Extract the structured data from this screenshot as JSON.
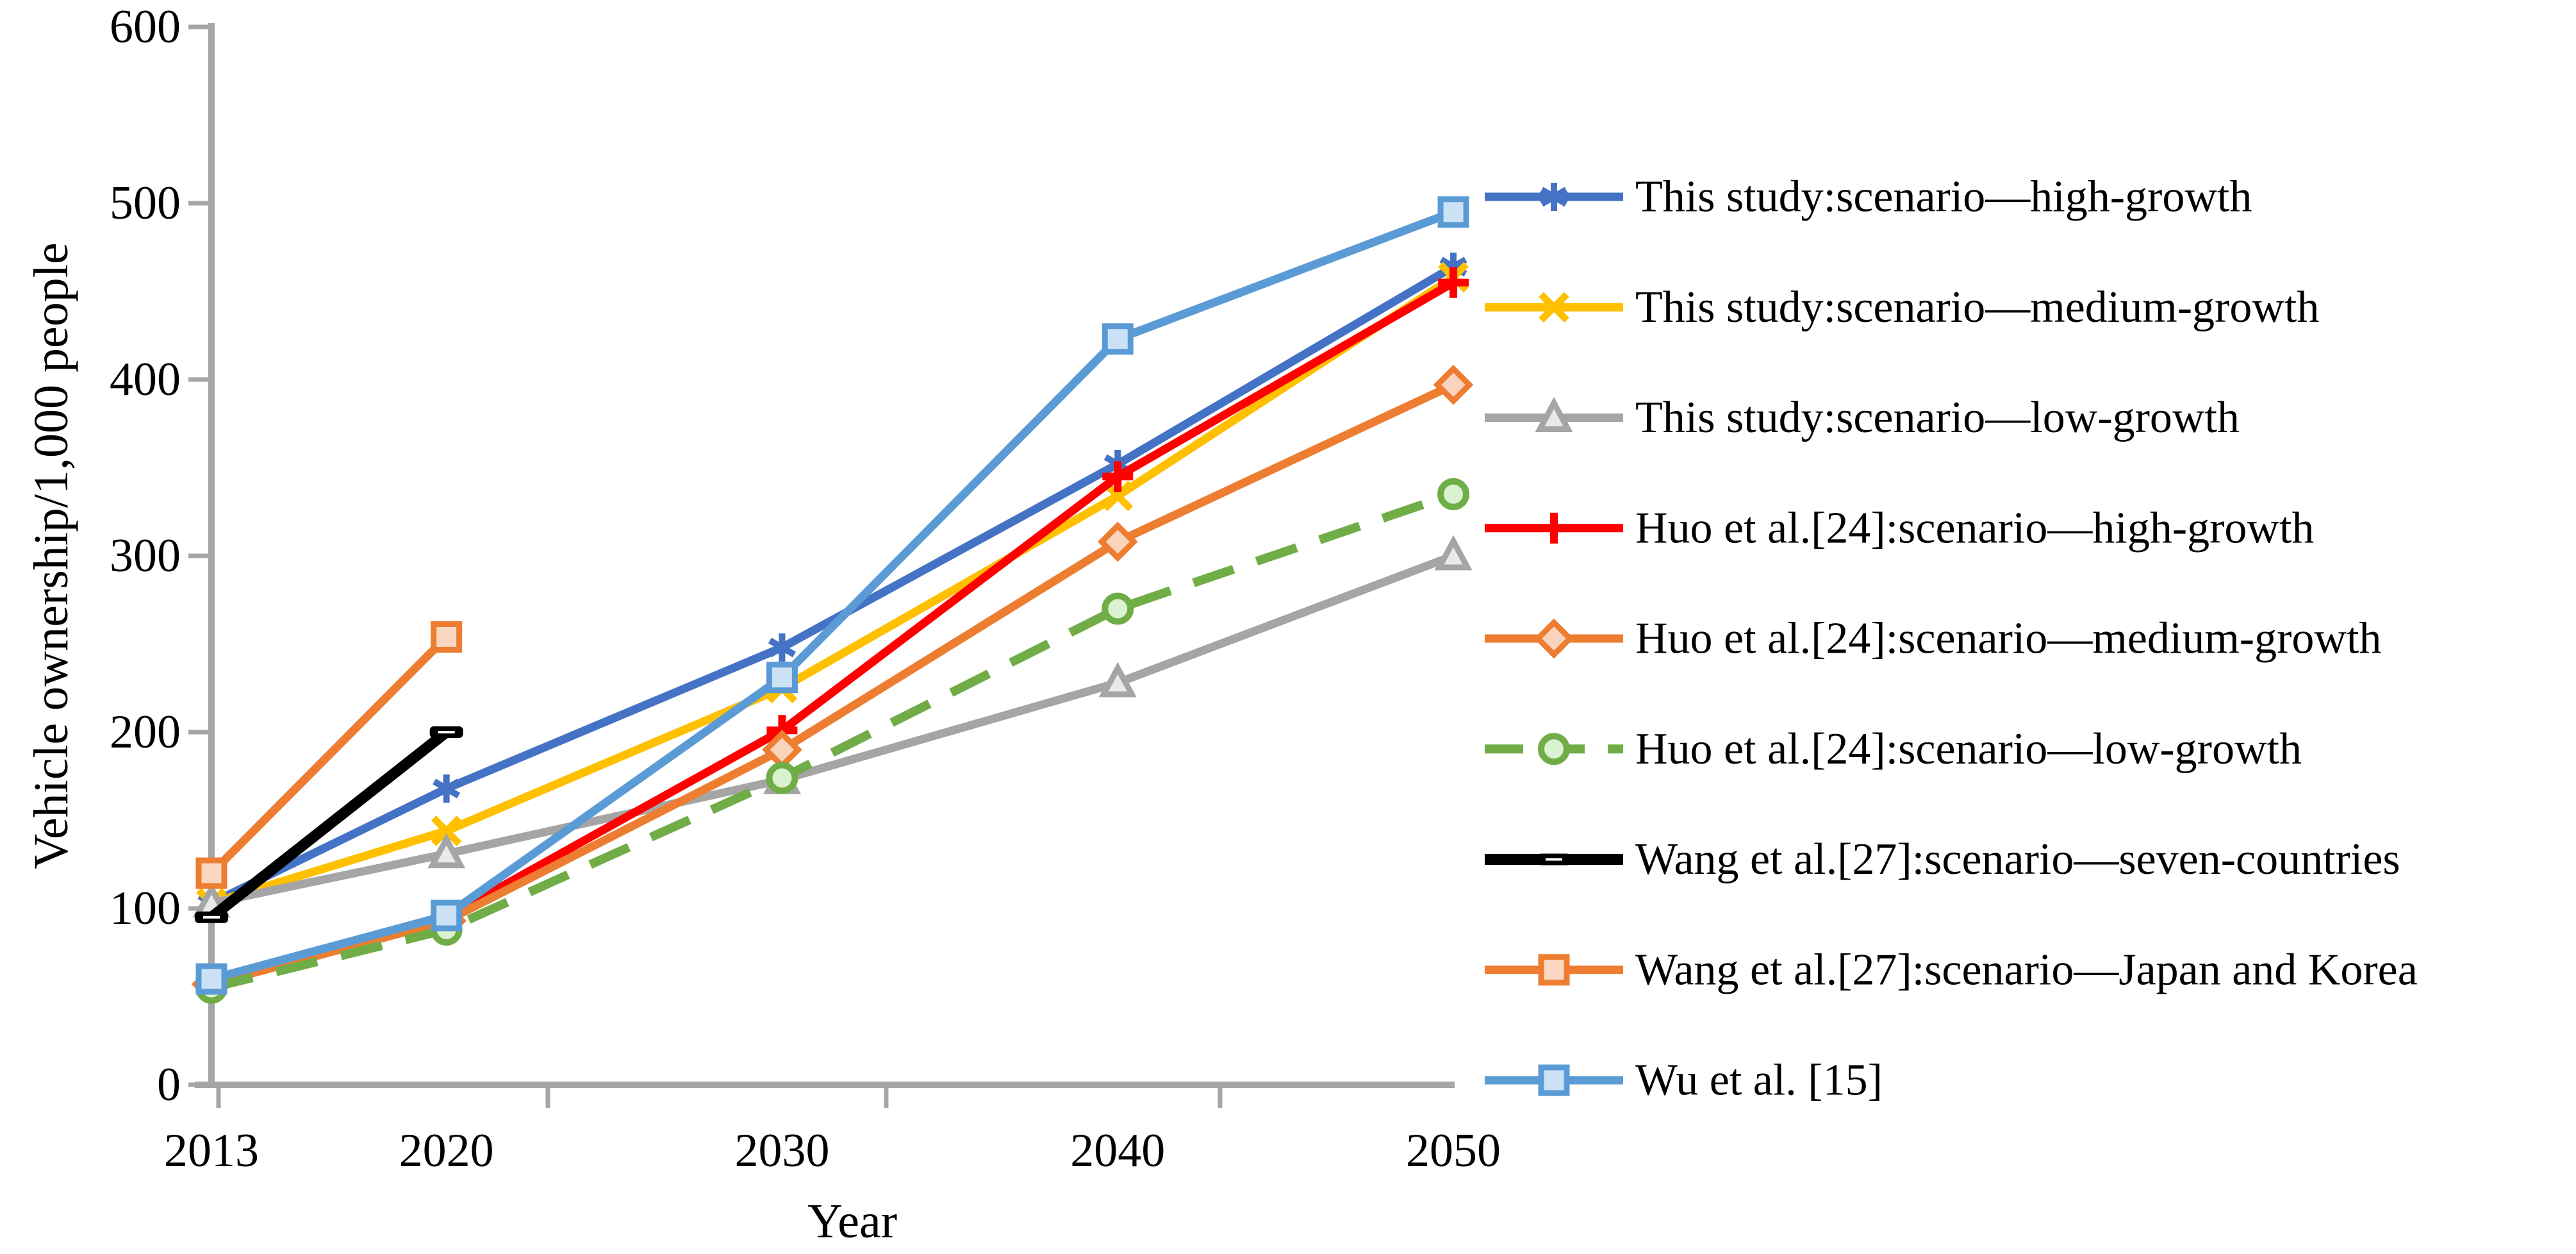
{
  "figure": {
    "background": "#FFFFFF",
    "axis_color": "#A6A6A6",
    "text_color": "#000000"
  },
  "chart_data": {
    "type": "line",
    "title": "",
    "xlabel": "Year",
    "ylabel": "Vehicle ownership/1,000 people",
    "x": [
      2013,
      2020,
      2030,
      2040,
      2050
    ],
    "xtick_labels": [
      "2013",
      "2020",
      "2030",
      "2040",
      "2050"
    ],
    "ylim": [
      0,
      600
    ],
    "ytick_step": 100,
    "ytick_labels": [
      "0",
      "100",
      "200",
      "300",
      "400",
      "500",
      "600"
    ],
    "grid": false,
    "legend_position": "right-outside",
    "series": [
      {
        "name": "This study:scenario—high-growth",
        "color": "#4472C4",
        "marker": "asterisk",
        "line_style": "solid",
        "values": [
          103,
          168,
          248,
          352,
          464
        ]
      },
      {
        "name": "This study:scenario—medium-growth",
        "color": "#FFC000",
        "marker": "x",
        "line_style": "solid",
        "values": [
          103,
          144,
          225,
          334,
          458
        ]
      },
      {
        "name": "This study:scenario—low-growth",
        "color": "#A5A5A5",
        "marker": "triangle",
        "marker_fill": "#E9E9E9",
        "line_style": "solid",
        "values": [
          103,
          131,
          173,
          228,
          300
        ]
      },
      {
        "name": "Huo et al.[24]:scenario—high-growth",
        "color": "#FF0000",
        "marker": "plus",
        "line_style": "solid",
        "values": [
          58,
          95,
          201,
          345,
          455
        ]
      },
      {
        "name": "Huo et al.[24]:scenario—medium-growth",
        "color": "#ED7D31",
        "marker": "diamond",
        "marker_fill": "#F9D3BB",
        "line_style": "solid",
        "values": [
          57,
          93,
          190,
          308,
          397
        ]
      },
      {
        "name": "Huo et al.[24]:scenario—low-growth",
        "color": "#70AD47",
        "marker": "circle",
        "marker_fill": "#D9F2CF",
        "line_style": "dashed",
        "values": [
          55,
          88,
          174,
          270,
          335
        ]
      },
      {
        "name": "Wang et al.[27]:scenario—seven-countries",
        "color": "#000000",
        "marker": "dash",
        "line_style": "solid",
        "values": [
          95,
          200,
          null,
          null,
          null
        ]
      },
      {
        "name": "Wang et al.[27]:scenario—Japan and Korea",
        "color": "#ED7D31",
        "marker": "square",
        "marker_fill": "#FAD7C1",
        "line_style": "solid",
        "values": [
          120,
          254,
          null,
          null,
          null
        ]
      },
      {
        "name": "Wu et al. [15]",
        "color": "#5B9BD5",
        "marker": "square",
        "marker_fill": "#CBE2F6",
        "line_style": "solid",
        "values": [
          60,
          96,
          231,
          423,
          495
        ]
      }
    ]
  }
}
